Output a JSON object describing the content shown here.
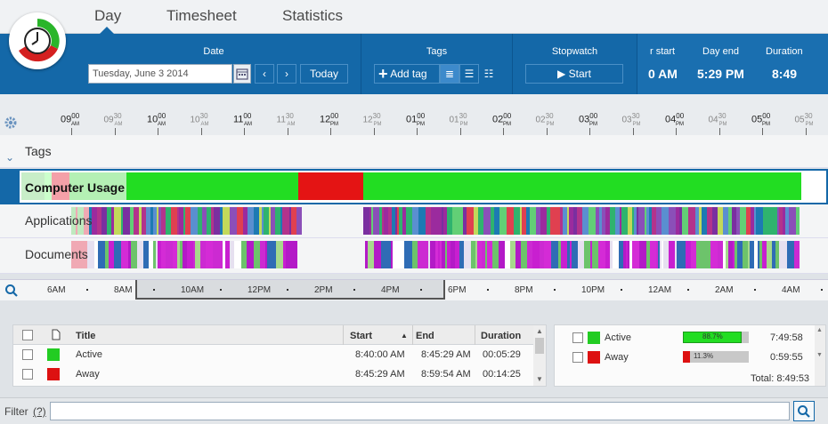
{
  "tabs": [
    {
      "label": "Day"
    },
    {
      "label": "Timesheet"
    },
    {
      "label": "Statistics"
    }
  ],
  "toolbar": {
    "date_title": "Date",
    "date_value": "Tuesday, June 3 2014",
    "today_label": "Today",
    "tags_title": "Tags",
    "add_tag_label": "Add tag",
    "stopwatch_title": "Stopwatch",
    "start_label": "Start",
    "day_start_title": "r start",
    "day_start_value": "0 AM",
    "day_end_title": "Day end",
    "day_end_value": "5:29 PM",
    "duration_title": "Duration",
    "duration_value": "8:49"
  },
  "ruler": {
    "hours": [
      {
        "h": "09",
        "m": "00",
        "ap": "AM"
      },
      {
        "h": "09",
        "m": "30",
        "ap": "AM"
      },
      {
        "h": "10",
        "m": "00",
        "ap": "AM"
      },
      {
        "h": "10",
        "m": "30",
        "ap": "AM"
      },
      {
        "h": "11",
        "m": "00",
        "ap": "AM"
      },
      {
        "h": "11",
        "m": "30",
        "ap": "AM"
      },
      {
        "h": "12",
        "m": "00",
        "ap": "PM"
      },
      {
        "h": "12",
        "m": "30",
        "ap": "PM"
      },
      {
        "h": "01",
        "m": "00",
        "ap": "PM"
      },
      {
        "h": "01",
        "m": "30",
        "ap": "PM"
      },
      {
        "h": "02",
        "m": "00",
        "ap": "PM"
      },
      {
        "h": "02",
        "m": "30",
        "ap": "PM"
      },
      {
        "h": "03",
        "m": "00",
        "ap": "PM"
      },
      {
        "h": "03",
        "m": "30",
        "ap": "PM"
      },
      {
        "h": "04",
        "m": "00",
        "ap": "PM"
      },
      {
        "h": "04",
        "m": "30",
        "ap": "PM"
      },
      {
        "h": "05",
        "m": "00",
        "ap": "PM"
      },
      {
        "h": "05",
        "m": "30",
        "ap": "PM"
      }
    ]
  },
  "lanes": {
    "tags": "Tags",
    "computer": "Computer Usage",
    "applications": "Applications",
    "documents": "Documents"
  },
  "overview": {
    "labels": [
      "6AM",
      "8AM",
      "10AM",
      "12PM",
      "2PM",
      "4PM",
      "6PM",
      "8PM",
      "10PM",
      "12AM",
      "2AM",
      "4AM"
    ]
  },
  "table": {
    "headers": {
      "title": "Title",
      "start": "Start",
      "end": "End",
      "duration": "Duration"
    },
    "rows": [
      {
        "title": "Active",
        "start": "8:40:00 AM",
        "end": "8:45:29 AM",
        "duration": "00:05:29",
        "color": "#22cc22"
      },
      {
        "title": "Away",
        "start": "8:45:29 AM",
        "end": "8:59:54 AM",
        "duration": "00:14:25",
        "color": "#dd1111"
      }
    ]
  },
  "summary": {
    "rows": [
      {
        "label": "Active",
        "percent": "88.7%",
        "value": "7:49:58",
        "color": "#22cc22",
        "fill": 0.887
      },
      {
        "label": "Away",
        "percent": "11.3%",
        "value": "0:59:55",
        "color": "#dd1111",
        "fill": 0.113
      }
    ],
    "total": "Total: 8:49:53"
  },
  "filter": {
    "label": "Filter",
    "help": "(?)"
  }
}
